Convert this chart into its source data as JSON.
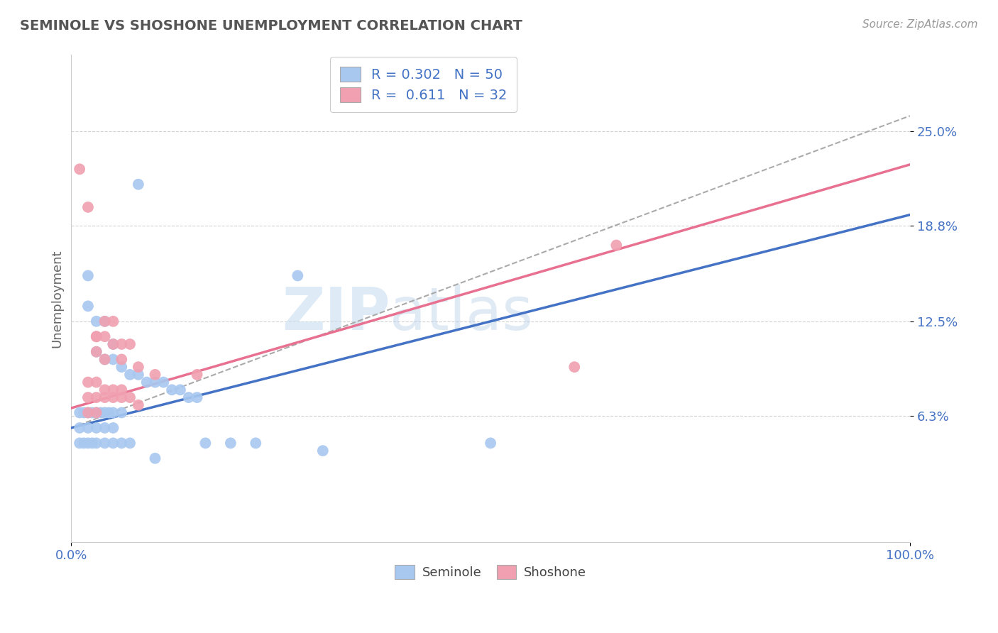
{
  "title": "SEMINOLE VS SHOSHONE UNEMPLOYMENT CORRELATION CHART",
  "source": "Source: ZipAtlas.com",
  "ylabel": "Unemployment",
  "xlim": [
    0.0,
    1.0
  ],
  "ylim": [
    -0.02,
    0.3
  ],
  "x_ticks": [
    0.0,
    1.0
  ],
  "x_tick_labels": [
    "0.0%",
    "100.0%"
  ],
  "y_ticks": [
    0.063,
    0.125,
    0.188,
    0.25
  ],
  "y_tick_labels": [
    "6.3%",
    "12.5%",
    "18.8%",
    "25.0%"
  ],
  "seminole_color": "#a8c8f0",
  "shoshone_color": "#f0a0b0",
  "seminole_line_color": "#4472c4",
  "shoshone_line_color": "#e87090",
  "ref_line_color": "#aaaaaa",
  "seminole_R": 0.302,
  "seminole_N": 50,
  "shoshone_R": 0.611,
  "shoshone_N": 32,
  "watermark_zip": "ZIP",
  "watermark_atlas": "atlas",
  "seminole_scatter_x": [
    0.08,
    0.02,
    0.27,
    0.02,
    0.03,
    0.04,
    0.05,
    0.03,
    0.04,
    0.05,
    0.06,
    0.07,
    0.08,
    0.09,
    0.1,
    0.11,
    0.12,
    0.13,
    0.14,
    0.15,
    0.01,
    0.015,
    0.02,
    0.025,
    0.03,
    0.035,
    0.04,
    0.045,
    0.05,
    0.06,
    0.01,
    0.02,
    0.03,
    0.04,
    0.05,
    0.01,
    0.015,
    0.02,
    0.025,
    0.03,
    0.04,
    0.05,
    0.06,
    0.07,
    0.16,
    0.19,
    0.22,
    0.5,
    0.3,
    0.1
  ],
  "seminole_scatter_y": [
    0.215,
    0.155,
    0.155,
    0.135,
    0.125,
    0.125,
    0.11,
    0.105,
    0.1,
    0.1,
    0.095,
    0.09,
    0.09,
    0.085,
    0.085,
    0.085,
    0.08,
    0.08,
    0.075,
    0.075,
    0.065,
    0.065,
    0.065,
    0.065,
    0.065,
    0.065,
    0.065,
    0.065,
    0.065,
    0.065,
    0.055,
    0.055,
    0.055,
    0.055,
    0.055,
    0.045,
    0.045,
    0.045,
    0.045,
    0.045,
    0.045,
    0.045,
    0.045,
    0.045,
    0.045,
    0.045,
    0.045,
    0.045,
    0.04,
    0.035
  ],
  "shoshone_scatter_x": [
    0.02,
    0.03,
    0.04,
    0.05,
    0.03,
    0.04,
    0.05,
    0.06,
    0.07,
    0.03,
    0.04,
    0.06,
    0.08,
    0.1,
    0.15,
    0.02,
    0.03,
    0.04,
    0.05,
    0.06,
    0.02,
    0.03,
    0.04,
    0.05,
    0.06,
    0.07,
    0.08,
    0.02,
    0.03,
    0.6,
    0.65,
    0.01
  ],
  "shoshone_scatter_y": [
    0.2,
    0.115,
    0.125,
    0.125,
    0.115,
    0.115,
    0.11,
    0.11,
    0.11,
    0.105,
    0.1,
    0.1,
    0.095,
    0.09,
    0.09,
    0.085,
    0.085,
    0.08,
    0.08,
    0.08,
    0.075,
    0.075,
    0.075,
    0.075,
    0.075,
    0.075,
    0.07,
    0.065,
    0.065,
    0.095,
    0.175,
    0.225
  ],
  "seminole_line": {
    "x0": 0.0,
    "y0": 0.055,
    "x1": 1.0,
    "y1": 0.195
  },
  "shoshone_line": {
    "x0": 0.0,
    "y0": 0.068,
    "x1": 1.0,
    "y1": 0.228
  },
  "ref_line": {
    "x0": 0.0,
    "y0": 0.055,
    "x1": 1.0,
    "y1": 0.26
  }
}
